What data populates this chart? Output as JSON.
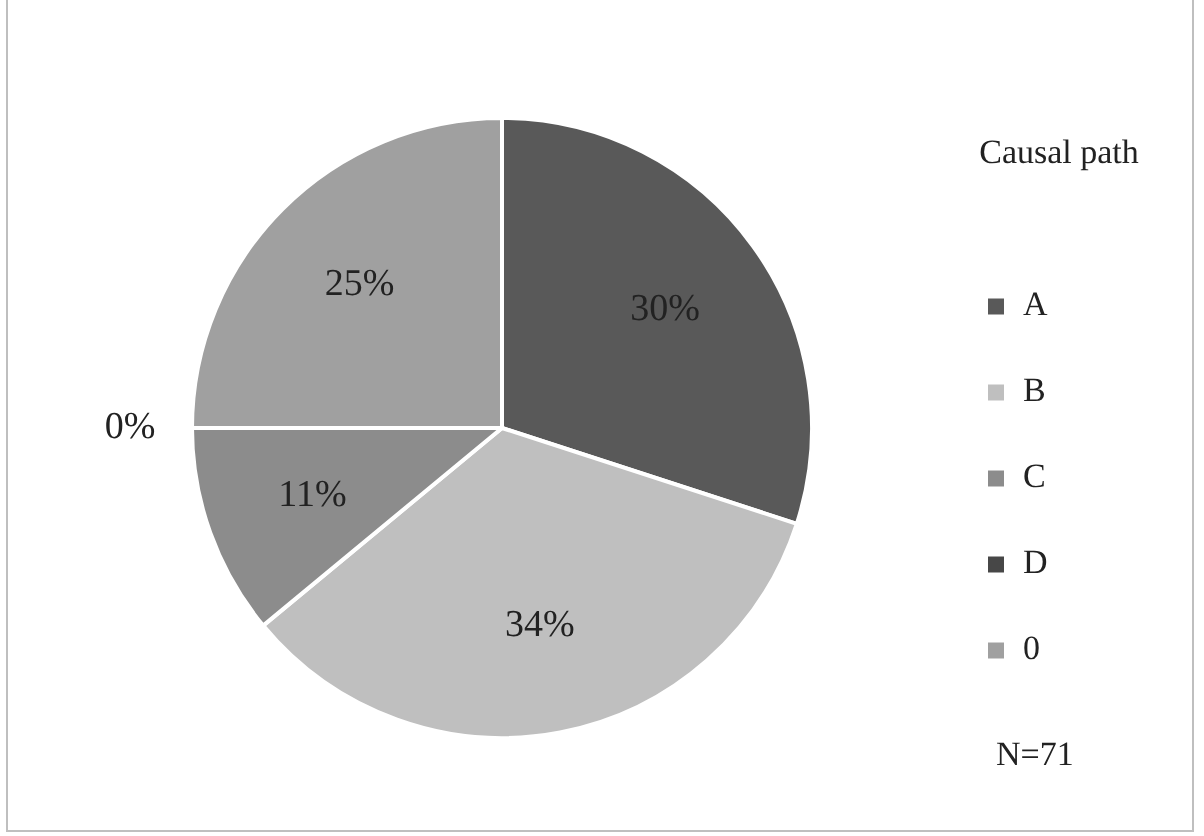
{
  "chart_data": {
    "type": "pie",
    "legend_title": "Causal path",
    "legend": "right",
    "categories": [
      "A",
      "B",
      "C",
      "D",
      "0"
    ],
    "values": [
      30,
      34,
      11,
      0,
      25
    ],
    "value_labels": [
      "30%",
      "34%",
      "11%",
      "0%",
      "25%"
    ],
    "colors": [
      "#595959",
      "#bfbfbf",
      "#8c8c8c",
      "#474747",
      "#a0a0a0"
    ],
    "annotations": [
      "N=71"
    ]
  }
}
